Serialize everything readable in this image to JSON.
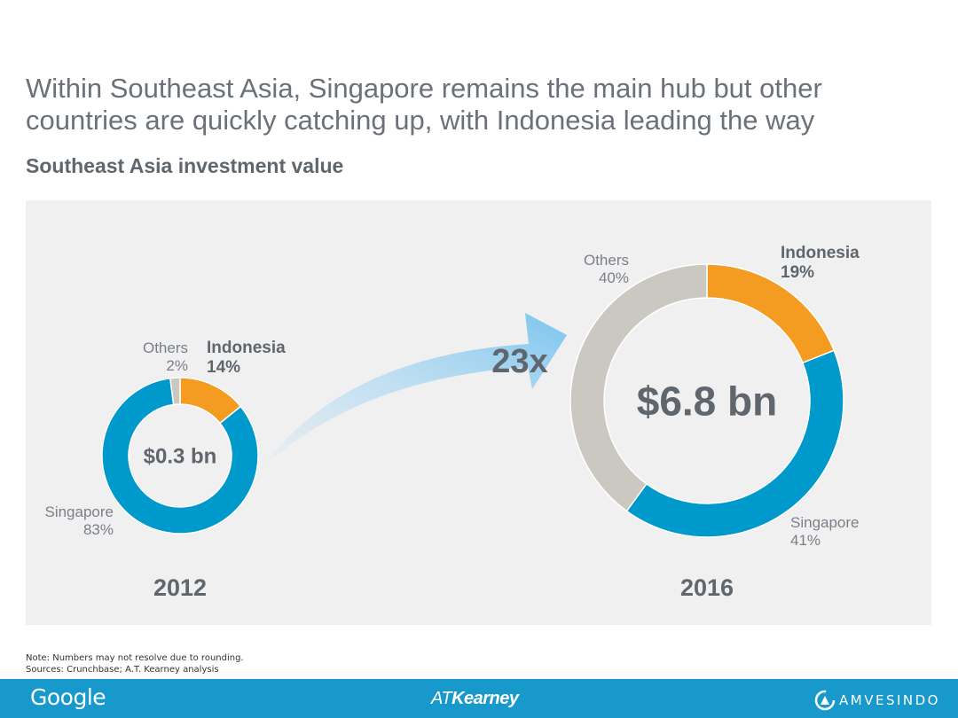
{
  "page": {
    "title": "Within Southeast Asia, Singapore remains the main hub but other countries are quickly catching up, with Indonesia leading the way",
    "subtitle": "Southeast Asia investment value"
  },
  "notes": {
    "note": "Note: Numbers may not resolve due to rounding.",
    "sources": "Sources: Crunchbase; A.T. Kearney analysis"
  },
  "footer": {
    "google": "Google",
    "atkearney_prefix": "AT",
    "atkearney_name": "Kearney",
    "amvesindo": "AMVESINDO"
  },
  "colors": {
    "indonesia": "#f39c21",
    "singapore": "#0099cc",
    "others": "#cbc8c1",
    "panel": "#f0f0f1",
    "footer": "#1899cc"
  },
  "growth_label": "23x",
  "chart_data": [
    {
      "type": "pie",
      "variant": "donut",
      "year": "2012",
      "center_label": "$0.3 bn",
      "total_usd_bn": 0.3,
      "slices": [
        {
          "name": "Indonesia",
          "value": 14,
          "label": "14%"
        },
        {
          "name": "Singapore",
          "value": 83,
          "label": "83%"
        },
        {
          "name": "Others",
          "value": 2,
          "label": "2%"
        }
      ]
    },
    {
      "type": "pie",
      "variant": "donut",
      "year": "2016",
      "center_label": "$6.8 bn",
      "total_usd_bn": 6.8,
      "slices": [
        {
          "name": "Indonesia",
          "value": 19,
          "label": "19%"
        },
        {
          "name": "Singapore",
          "value": 41,
          "label": "41%"
        },
        {
          "name": "Others",
          "value": 40,
          "label": "40%"
        }
      ]
    }
  ]
}
